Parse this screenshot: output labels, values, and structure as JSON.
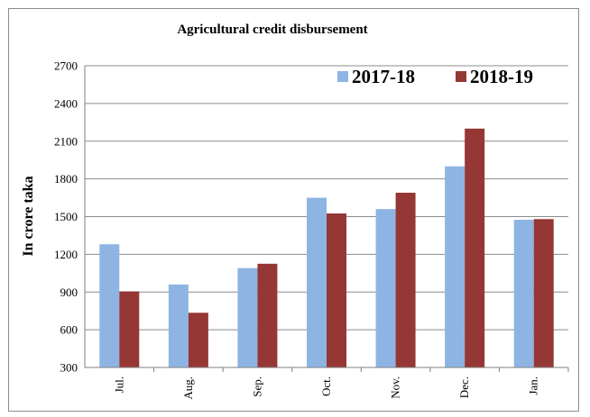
{
  "chart_data": {
    "type": "bar",
    "title": "Agricultural credit disbursement",
    "ylabel": "In crore taka",
    "xlabel": "",
    "categories": [
      "Jul.",
      "Aug.",
      "Sep.",
      "Oct.",
      "Nov.",
      "Dec.",
      "Jan."
    ],
    "series": [
      {
        "name": "2017-18",
        "color": "#8eb4e3",
        "values": [
          1280,
          960,
          1090,
          1650,
          1560,
          1900,
          1475
        ]
      },
      {
        "name": "2018-19",
        "color": "#953735",
        "values": [
          905,
          735,
          1125,
          1525,
          1690,
          2200,
          1480
        ]
      }
    ],
    "ylim": [
      300,
      2700
    ],
    "yticks": [
      300,
      600,
      900,
      1200,
      1500,
      1800,
      2100,
      2400,
      2700
    ],
    "grid": true,
    "legend_position": "top-right"
  }
}
